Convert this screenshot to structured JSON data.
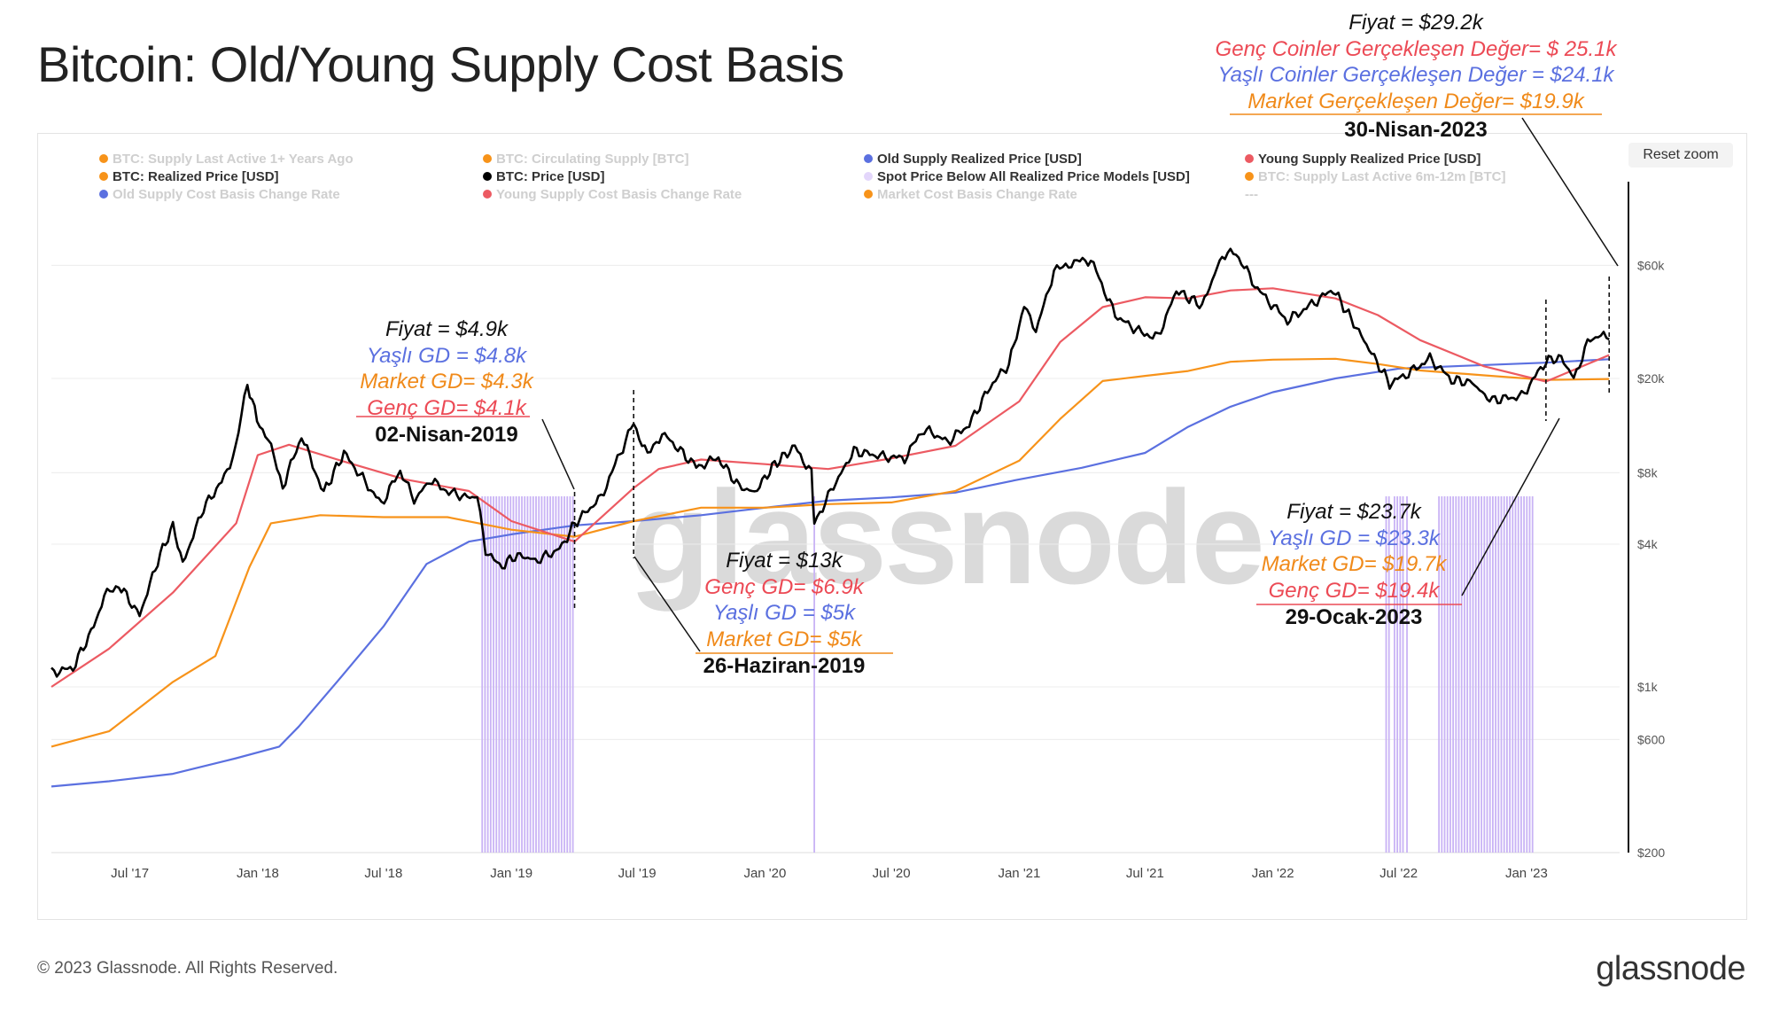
{
  "title": "Bitcoin: Old/Young Supply Cost Basis",
  "reset_zoom": "Reset zoom",
  "watermark": "glassnode",
  "footer": "© 2023 Glassnode. All Rights Reserved.",
  "logo": "glassnode",
  "colors": {
    "price": "#000000",
    "old": "#5b70e0",
    "young": "#ec5a62",
    "market": "#f7931a",
    "purple": "#c9b3f5",
    "grid": "#ececec"
  },
  "legend": [
    {
      "label": "BTC: Supply Last Active 1+ Years Ago",
      "color": "#f7931a",
      "active": false
    },
    {
      "label": "BTC: Circulating Supply [BTC]",
      "color": "#f7931a",
      "active": false
    },
    {
      "label": "Old Supply Realized Price [USD]",
      "color": "#5b70e0",
      "active": true
    },
    {
      "label": "Young Supply Realized Price [USD]",
      "color": "#ec5a62",
      "active": true
    },
    {
      "label": "BTC: Realized Price [USD]",
      "color": "#f7931a",
      "active": true
    },
    {
      "label": "BTC: Price [USD]",
      "color": "#000000",
      "active": true
    },
    {
      "label": "Spot Price Below All Realized Price Models [USD]",
      "color": "#e3d6fb",
      "active": true
    },
    {
      "label": "BTC: Supply Last Active 6m-12m [BTC]",
      "color": "#f7931a",
      "active": false
    },
    {
      "label": "Old Supply Cost Basis Change Rate",
      "color": "#5b70e0",
      "active": false
    },
    {
      "label": "Young Supply Cost Basis Change Rate",
      "color": "#ec5a62",
      "active": false
    },
    {
      "label": "Market Cost Basis Change Rate",
      "color": "#f7931a",
      "active": false
    },
    {
      "label": "---",
      "color": "",
      "active": false
    }
  ],
  "annotations": [
    {
      "lines": [
        {
          "text": "Fiyat = $29.2k",
          "color": "#111111"
        },
        {
          "text": "Genç Coinler Gerçekleşen Değer= $ 25.1k",
          "color": "#ec4a55"
        },
        {
          "text": "Yaşlı Coinler Gerçekleşen Değer = $24.1k",
          "color": "#5b70e0"
        },
        {
          "text": "Market Gerçekleşen Değer= $19.9k",
          "color": "#f08a1a"
        }
      ],
      "date": "30-Nisan-2023"
    },
    {
      "lines": [
        {
          "text": "Fiyat = $4.9k",
          "color": "#111111"
        },
        {
          "text": "Yaşlı GD = $4.8k",
          "color": "#5b70e0"
        },
        {
          "text": "Market GD= $4.3k",
          "color": "#f08a1a"
        },
        {
          "text": "Genç GD= $4.1k",
          "color": "#ec4a55"
        }
      ],
      "date": "02-Nisan-2019"
    },
    {
      "lines": [
        {
          "text": "Fiyat = $13k",
          "color": "#111111"
        },
        {
          "text": "Genç GD= $6.9k",
          "color": "#ec4a55"
        },
        {
          "text": "Yaşlı GD = $5k",
          "color": "#5b70e0"
        },
        {
          "text": "Market GD= $5k",
          "color": "#f08a1a"
        }
      ],
      "date": "26-Haziran-2019"
    },
    {
      "lines": [
        {
          "text": "Fiyat = $23.7k",
          "color": "#111111"
        },
        {
          "text": "Yaşlı GD = $23.3k",
          "color": "#5b70e0"
        },
        {
          "text": "Market GD= $19.7k",
          "color": "#f08a1a"
        },
        {
          "text": "Genç GD= $19.4k",
          "color": "#ec4a55"
        }
      ],
      "date": "29-Ocak-2023"
    }
  ],
  "chart_data": {
    "type": "line",
    "title": "Bitcoin: Old/Young Supply Cost Basis",
    "yscale": "log",
    "ylim": [
      200,
      100000
    ],
    "xlim": [
      "2017-03-10",
      "2023-05-15"
    ],
    "y_ticks": [
      {
        "value": 200,
        "label": "$200"
      },
      {
        "value": 600,
        "label": "$600"
      },
      {
        "value": 1000,
        "label": "$1k"
      },
      {
        "value": 4000,
        "label": "$4k"
      },
      {
        "value": 8000,
        "label": "$8k"
      },
      {
        "value": 20000,
        "label": "$20k"
      },
      {
        "value": 60000,
        "label": "$60k"
      }
    ],
    "x_ticks": [
      {
        "date": "2017-07-01",
        "label": "Jul '17"
      },
      {
        "date": "2018-01-01",
        "label": "Jan '18"
      },
      {
        "date": "2018-07-01",
        "label": "Jul '18"
      },
      {
        "date": "2019-01-01",
        "label": "Jan '19"
      },
      {
        "date": "2019-07-01",
        "label": "Jul '19"
      },
      {
        "date": "2020-01-01",
        "label": "Jan '20"
      },
      {
        "date": "2020-07-01",
        "label": "Jul '20"
      },
      {
        "date": "2021-01-01",
        "label": "Jan '21"
      },
      {
        "date": "2021-07-01",
        "label": "Jul '21"
      },
      {
        "date": "2022-01-01",
        "label": "Jan '22"
      },
      {
        "date": "2022-07-01",
        "label": "Jul '22"
      },
      {
        "date": "2023-01-01",
        "label": "Jan '23"
      }
    ],
    "series": [
      {
        "name": "BTC: Price [USD]",
        "color": "#000000",
        "points": [
          [
            "2017-03-10",
            1150
          ],
          [
            "2017-04-10",
            1200
          ],
          [
            "2017-05-10",
            1800
          ],
          [
            "2017-05-25",
            2400
          ],
          [
            "2017-06-15",
            2700
          ],
          [
            "2017-07-15",
            2000
          ],
          [
            "2017-08-10",
            3400
          ],
          [
            "2017-09-01",
            4800
          ],
          [
            "2017-09-15",
            3300
          ],
          [
            "2017-10-15",
            5700
          ],
          [
            "2017-11-10",
            7300
          ],
          [
            "2017-11-30",
            10000
          ],
          [
            "2017-12-17",
            19000
          ],
          [
            "2017-12-31",
            13500
          ],
          [
            "2018-01-16",
            11000
          ],
          [
            "2018-02-06",
            7000
          ],
          [
            "2018-03-05",
            11400
          ],
          [
            "2018-04-06",
            6600
          ],
          [
            "2018-05-05",
            9700
          ],
          [
            "2018-06-28",
            5900
          ],
          [
            "2018-07-25",
            8200
          ],
          [
            "2018-08-14",
            6100
          ],
          [
            "2018-09-05",
            7400
          ],
          [
            "2018-10-15",
            6400
          ],
          [
            "2018-11-13",
            6300
          ],
          [
            "2018-11-25",
            3800
          ],
          [
            "2018-12-15",
            3200
          ],
          [
            "2019-01-10",
            3600
          ],
          [
            "2019-02-08",
            3400
          ],
          [
            "2019-03-15",
            3900
          ],
          [
            "2019-04-02",
            4900
          ],
          [
            "2019-05-10",
            6300
          ],
          [
            "2019-05-30",
            8600
          ],
          [
            "2019-06-26",
            13000
          ],
          [
            "2019-07-16",
            9400
          ],
          [
            "2019-08-06",
            11800
          ],
          [
            "2019-09-24",
            8500
          ],
          [
            "2019-10-26",
            9200
          ],
          [
            "2019-11-25",
            7000
          ],
          [
            "2019-12-17",
            6600
          ],
          [
            "2020-01-15",
            8700
          ],
          [
            "2020-02-13",
            10300
          ],
          [
            "2020-03-08",
            8000
          ],
          [
            "2020-03-12",
            4900
          ],
          [
            "2020-04-01",
            6400
          ],
          [
            "2020-05-08",
            9900
          ],
          [
            "2020-06-15",
            9400
          ],
          [
            "2020-07-20",
            9200
          ],
          [
            "2020-08-17",
            12300
          ],
          [
            "2020-09-20",
            10800
          ],
          [
            "2020-10-21",
            12800
          ],
          [
            "2020-11-20",
            18500
          ],
          [
            "2020-12-17",
            23000
          ],
          [
            "2021-01-08",
            40000
          ],
          [
            "2021-01-25",
            32000
          ],
          [
            "2021-02-20",
            56000
          ],
          [
            "2021-03-13",
            61000
          ],
          [
            "2021-04-14",
            63500
          ],
          [
            "2021-05-19",
            37000
          ],
          [
            "2021-06-22",
            31500
          ],
          [
            "2021-07-20",
            29800
          ],
          [
            "2021-08-15",
            47000
          ],
          [
            "2021-09-21",
            40500
          ],
          [
            "2021-10-20",
            66000
          ],
          [
            "2021-11-09",
            67500
          ],
          [
            "2021-12-10",
            47500
          ],
          [
            "2022-01-22",
            35000
          ],
          [
            "2022-03-29",
            47500
          ],
          [
            "2022-05-12",
            29000
          ],
          [
            "2022-06-18",
            19000
          ],
          [
            "2022-07-15",
            21000
          ],
          [
            "2022-08-15",
            24300
          ],
          [
            "2022-09-15",
            19700
          ],
          [
            "2022-10-15",
            19200
          ],
          [
            "2022-11-09",
            16200
          ],
          [
            "2022-12-25",
            16800
          ],
          [
            "2023-01-29",
            23700
          ],
          [
            "2023-02-20",
            24500
          ],
          [
            "2023-03-10",
            20000
          ],
          [
            "2023-03-30",
            28400
          ],
          [
            "2023-04-14",
            30400
          ],
          [
            "2023-04-30",
            29200
          ]
        ]
      },
      {
        "name": "Young Supply Realized Price [USD]",
        "color": "#ec5a62",
        "points": [
          [
            "2017-03-10",
            1000
          ],
          [
            "2017-06-01",
            1450
          ],
          [
            "2017-09-01",
            2500
          ],
          [
            "2017-12-01",
            4900
          ],
          [
            "2018-01-01",
            9500
          ],
          [
            "2018-02-15",
            10500
          ],
          [
            "2018-05-01",
            9000
          ],
          [
            "2018-08-01",
            7500
          ],
          [
            "2018-11-01",
            6700
          ],
          [
            "2019-01-01",
            5000
          ],
          [
            "2019-04-02",
            4100
          ],
          [
            "2019-06-26",
            6900
          ],
          [
            "2019-08-01",
            8300
          ],
          [
            "2019-10-01",
            9100
          ],
          [
            "2020-01-01",
            8700
          ],
          [
            "2020-04-01",
            8300
          ],
          [
            "2020-07-01",
            9200
          ],
          [
            "2020-10-01",
            10400
          ],
          [
            "2021-01-01",
            16000
          ],
          [
            "2021-03-01",
            28500
          ],
          [
            "2021-05-01",
            40000
          ],
          [
            "2021-07-01",
            44000
          ],
          [
            "2021-09-01",
            43500
          ],
          [
            "2021-11-01",
            47000
          ],
          [
            "2022-01-01",
            48000
          ],
          [
            "2022-04-01",
            43500
          ],
          [
            "2022-06-01",
            37000
          ],
          [
            "2022-08-01",
            29000
          ],
          [
            "2022-11-01",
            22500
          ],
          [
            "2023-01-29",
            19400
          ],
          [
            "2023-04-30",
            25100
          ]
        ]
      },
      {
        "name": "BTC: Realized Price [USD]",
        "color": "#f7931a",
        "points": [
          [
            "2017-03-10",
            560
          ],
          [
            "2017-06-01",
            650
          ],
          [
            "2017-09-01",
            1050
          ],
          [
            "2017-11-01",
            1350
          ],
          [
            "2017-12-20",
            3200
          ],
          [
            "2018-01-20",
            4900
          ],
          [
            "2018-04-01",
            5300
          ],
          [
            "2018-07-01",
            5200
          ],
          [
            "2018-10-01",
            5200
          ],
          [
            "2019-01-01",
            4600
          ],
          [
            "2019-04-02",
            4300
          ],
          [
            "2019-06-26",
            5000
          ],
          [
            "2019-10-01",
            5700
          ],
          [
            "2020-01-01",
            5700
          ],
          [
            "2020-04-01",
            5900
          ],
          [
            "2020-07-01",
            6000
          ],
          [
            "2020-10-01",
            6700
          ],
          [
            "2021-01-01",
            9000
          ],
          [
            "2021-03-01",
            13500
          ],
          [
            "2021-05-01",
            19500
          ],
          [
            "2021-07-01",
            20500
          ],
          [
            "2021-09-01",
            21500
          ],
          [
            "2021-11-01",
            23500
          ],
          [
            "2022-01-01",
            24000
          ],
          [
            "2022-04-01",
            24200
          ],
          [
            "2022-06-01",
            23000
          ],
          [
            "2022-08-01",
            21600
          ],
          [
            "2022-11-01",
            20600
          ],
          [
            "2023-01-29",
            19700
          ],
          [
            "2023-04-30",
            19900
          ]
        ]
      },
      {
        "name": "Old Supply Realized Price [USD]",
        "color": "#5b70e0",
        "points": [
          [
            "2017-03-10",
            380
          ],
          [
            "2017-06-01",
            400
          ],
          [
            "2017-09-01",
            430
          ],
          [
            "2017-12-01",
            500
          ],
          [
            "2018-02-01",
            560
          ],
          [
            "2018-03-01",
            680
          ],
          [
            "2018-05-01",
            1100
          ],
          [
            "2018-07-01",
            1800
          ],
          [
            "2018-09-01",
            3300
          ],
          [
            "2018-11-01",
            4100
          ],
          [
            "2019-01-01",
            4400
          ],
          [
            "2019-04-02",
            4800
          ],
          [
            "2019-06-26",
            5000
          ],
          [
            "2019-10-01",
            5300
          ],
          [
            "2020-01-01",
            5700
          ],
          [
            "2020-04-01",
            6100
          ],
          [
            "2020-07-01",
            6300
          ],
          [
            "2020-10-01",
            6600
          ],
          [
            "2021-01-01",
            7500
          ],
          [
            "2021-04-01",
            8400
          ],
          [
            "2021-07-01",
            9700
          ],
          [
            "2021-09-01",
            12500
          ],
          [
            "2021-11-01",
            15200
          ],
          [
            "2022-01-01",
            17500
          ],
          [
            "2022-04-01",
            20000
          ],
          [
            "2022-07-01",
            22000
          ],
          [
            "2022-10-01",
            22600
          ],
          [
            "2023-01-29",
            23300
          ],
          [
            "2023-04-30",
            24100
          ]
        ]
      }
    ],
    "below_all_models_periods": [
      [
        "2018-11-20",
        "2019-04-01"
      ],
      [
        "2020-03-12",
        "2020-03-15"
      ],
      [
        "2022-06-13",
        "2022-06-21"
      ],
      [
        "2022-06-25",
        "2022-07-08"
      ],
      [
        "2022-07-13",
        "2022-07-17"
      ],
      [
        "2022-08-28",
        "2023-01-10"
      ]
    ]
  }
}
